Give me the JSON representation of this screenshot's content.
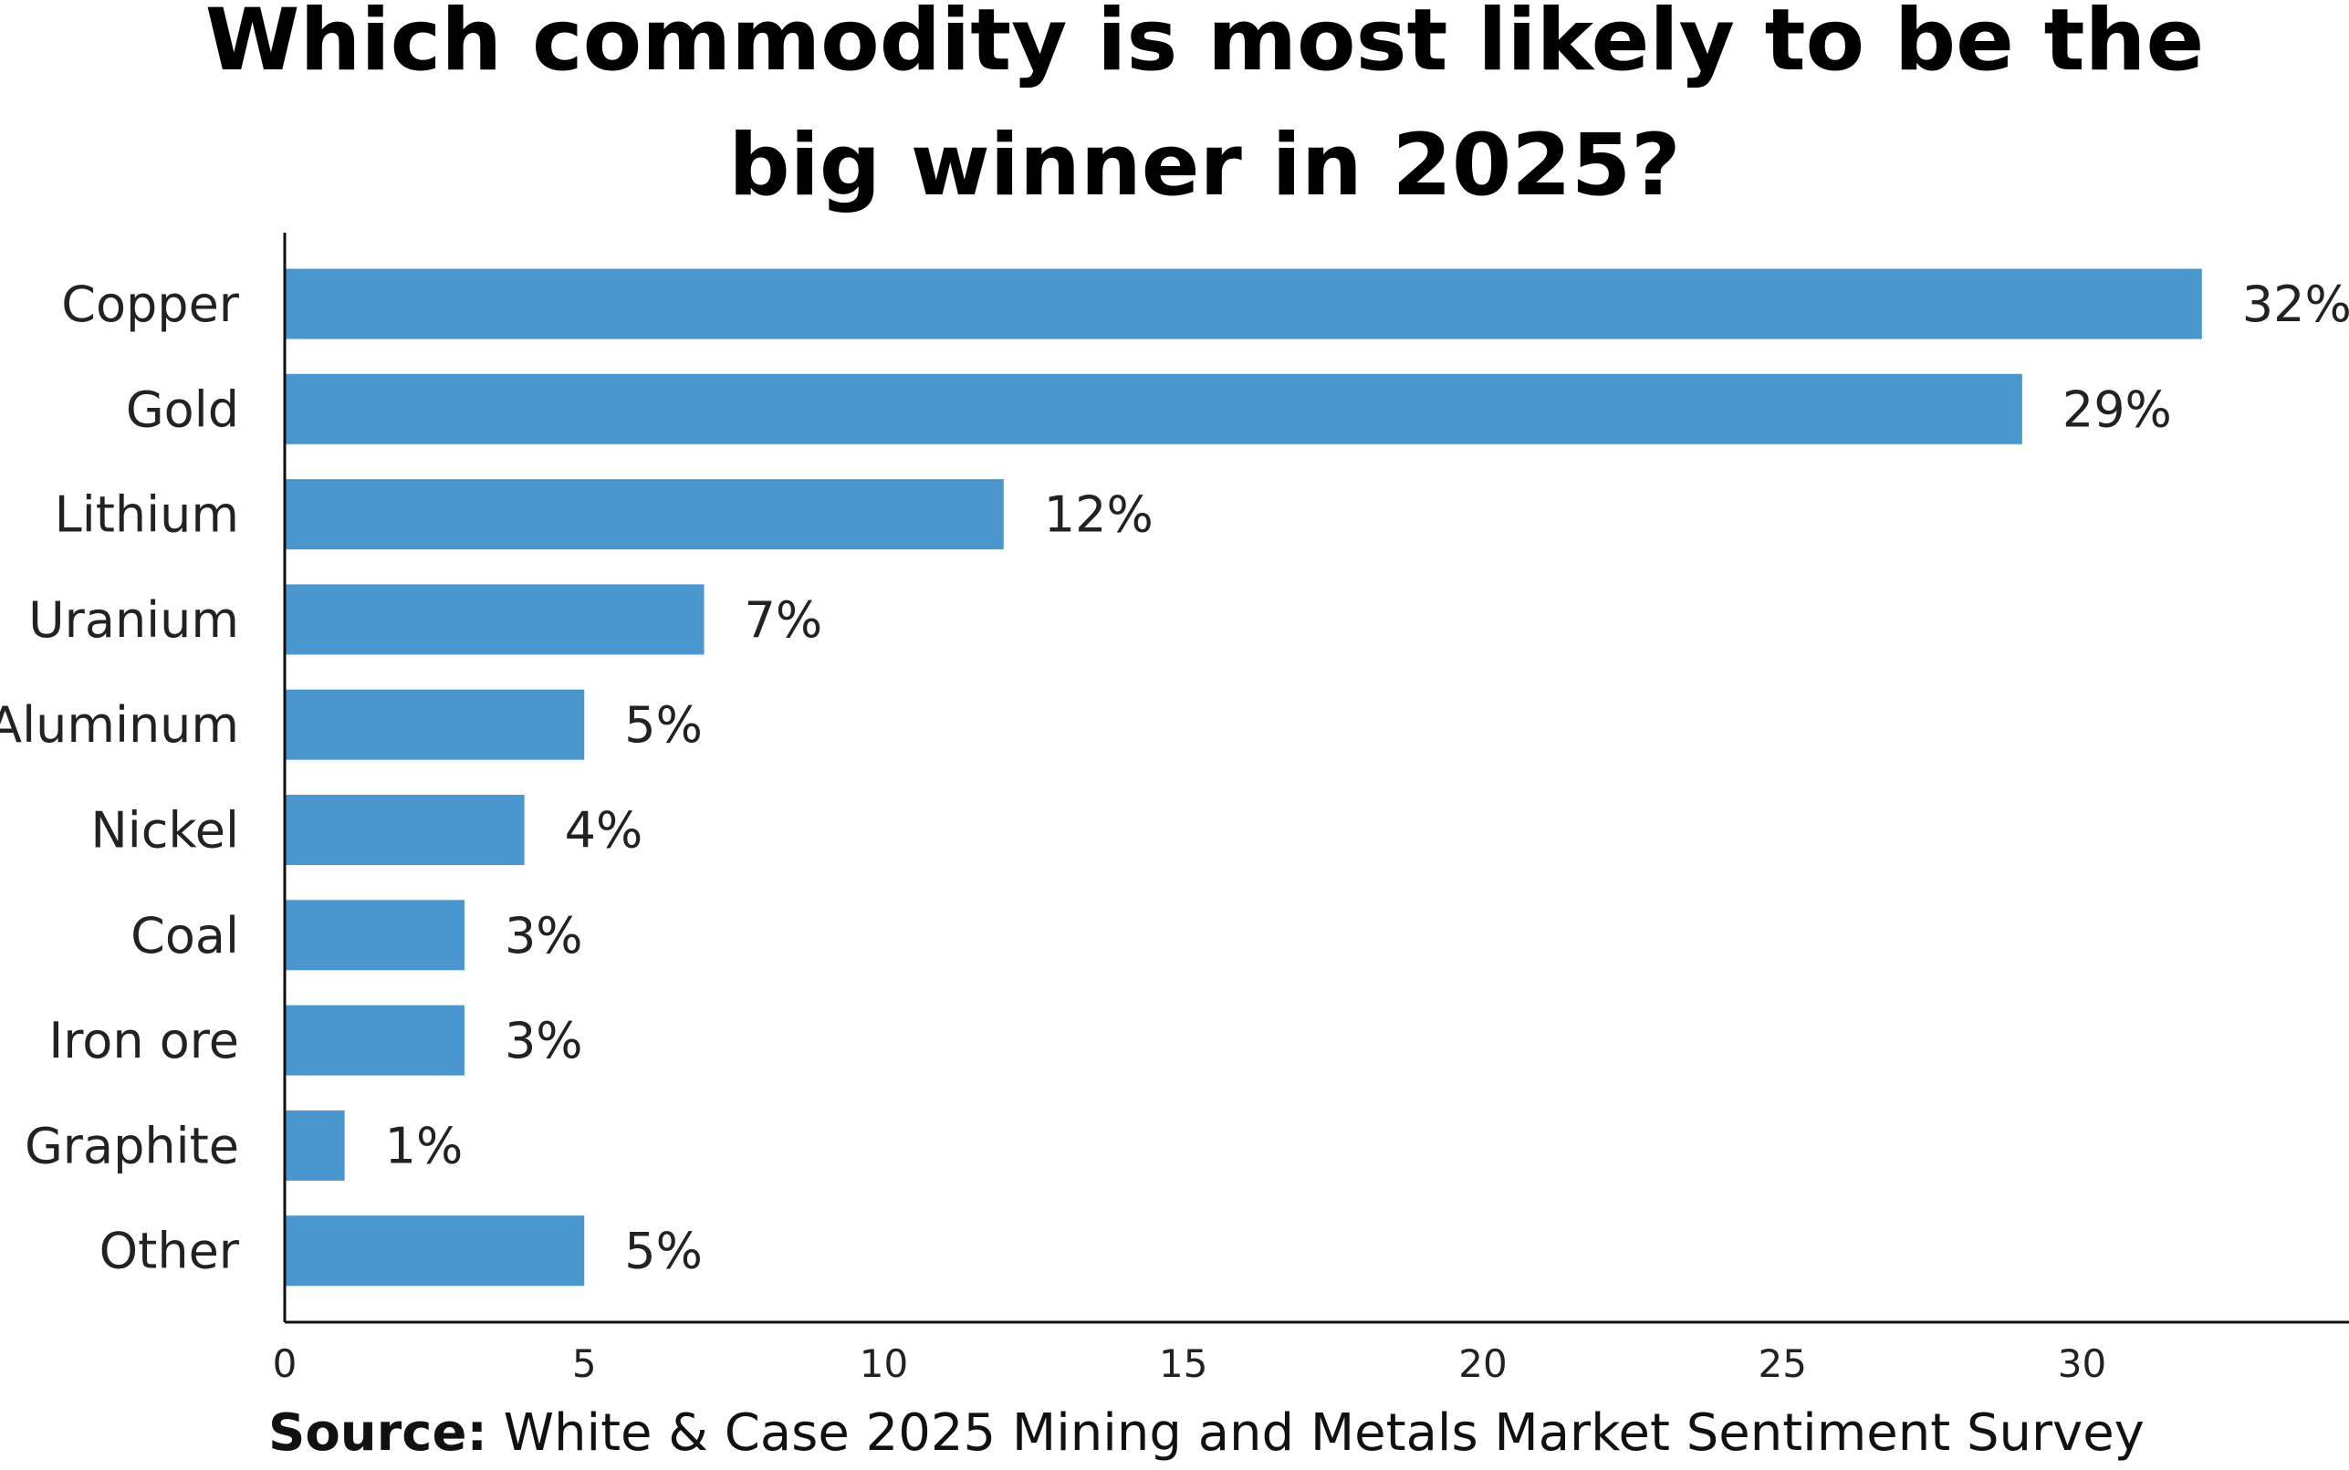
{
  "chart_data": {
    "type": "bar",
    "orientation": "horizontal",
    "title_lines": [
      "Which commodity is most likely to be the",
      "big winner in 2025?"
    ],
    "categories": [
      "Copper",
      "Gold",
      "Lithium",
      "Uranium",
      "Aluminum",
      "Nickel",
      "Coal",
      "Iron ore",
      "Graphite",
      "Other"
    ],
    "values": [
      32,
      29,
      12,
      7,
      5,
      4,
      3,
      3,
      1,
      5
    ],
    "value_labels": [
      "32%",
      "29%",
      "12%",
      "7%",
      "5%",
      "4%",
      "3%",
      "3%",
      "1%",
      "5%"
    ],
    "xlim": [
      0,
      34.2
    ],
    "xticks": [
      0,
      5,
      10,
      15,
      20,
      25,
      30
    ],
    "xtick_labels": [
      "0",
      "5",
      "10",
      "15",
      "20",
      "25",
      "30"
    ],
    "bar_color": "#4a97cf",
    "grid": false,
    "source_prefix": "Source:",
    "source_text": " White & Case 2025 Mining and Metals Market Sentiment Survey"
  }
}
